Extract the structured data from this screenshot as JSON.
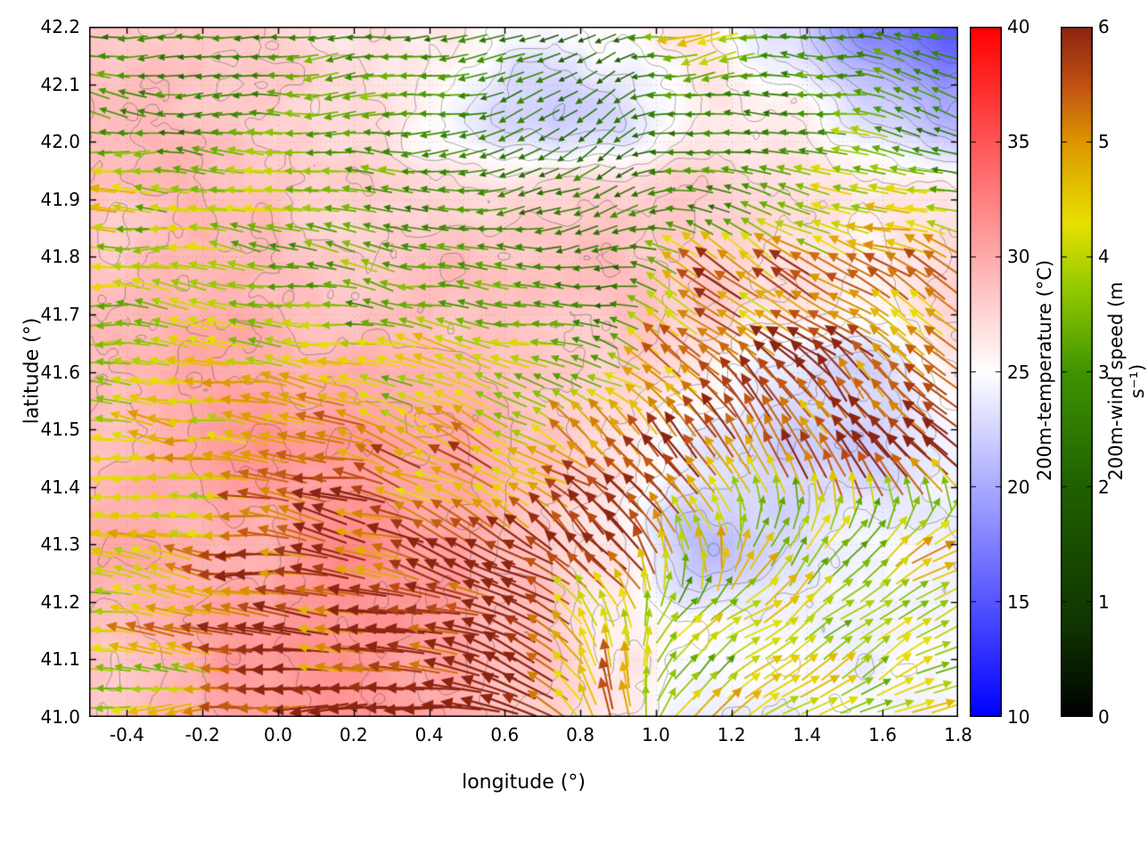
{
  "chart_data": {
    "type": "heatmap",
    "subtype": "temperature field with wind vectors and contour lines",
    "title": "",
    "xlabel": "longitude (°)",
    "ylabel": "latitude (°)",
    "xlim": [
      -0.5,
      1.8
    ],
    "ylim": [
      41.0,
      42.2
    ],
    "xticks": [
      -0.4,
      -0.2,
      0.0,
      0.2,
      0.4,
      0.6,
      0.8,
      1.0,
      1.2,
      1.4,
      1.6,
      1.8
    ],
    "yticks": [
      41.0,
      41.1,
      41.2,
      41.3,
      41.4,
      41.5,
      41.6,
      41.7,
      41.8,
      41.9,
      42.0,
      42.1,
      42.2
    ],
    "grid": true,
    "contour_interval_c": 1,
    "contour_levels_c": [
      17,
      18,
      19,
      20,
      21,
      22,
      23,
      24,
      25,
      26,
      27,
      28,
      29,
      30,
      31
    ],
    "contour_color": "#3c3c3c",
    "temperature_field": {
      "units": "°C",
      "lon": [
        -0.5,
        -0.27,
        -0.04,
        0.19,
        0.42,
        0.65,
        0.88,
        1.11,
        1.34,
        1.57,
        1.8
      ],
      "lat": [
        41.0,
        41.15,
        41.3,
        41.45,
        41.6,
        41.75,
        41.9,
        42.05,
        42.2
      ],
      "values": [
        [
          29.0,
          29.5,
          30.0,
          30.5,
          30.0,
          28.0,
          26.0,
          24.5,
          24.0,
          24.0,
          24.0
        ],
        [
          29.0,
          29.5,
          30.5,
          31.0,
          30.5,
          28.5,
          26.0,
          24.5,
          24.0,
          24.0,
          24.0
        ],
        [
          29.0,
          29.5,
          30.0,
          31.0,
          30.5,
          29.0,
          26.5,
          21.5,
          23.0,
          24.0,
          24.5
        ],
        [
          29.0,
          29.5,
          30.0,
          30.0,
          29.5,
          29.0,
          27.0,
          24.0,
          23.0,
          23.5,
          25.0
        ],
        [
          29.0,
          29.5,
          29.5,
          29.5,
          29.0,
          29.0,
          28.0,
          26.0,
          24.0,
          23.5,
          26.0
        ],
        [
          28.5,
          29.0,
          29.0,
          29.0,
          29.0,
          28.5,
          28.5,
          28.0,
          27.0,
          26.5,
          27.0
        ],
        [
          28.5,
          29.0,
          29.0,
          28.5,
          27.5,
          27.0,
          27.5,
          28.0,
          27.5,
          27.0,
          26.0
        ],
        [
          28.0,
          28.5,
          28.5,
          28.0,
          26.0,
          23.0,
          23.5,
          26.5,
          26.0,
          22.0,
          20.0
        ],
        [
          28.0,
          28.0,
          28.5,
          27.5,
          26.5,
          24.5,
          25.5,
          26.5,
          24.0,
          18.0,
          16.0
        ]
      ]
    },
    "temperature_colorbar": {
      "label": "200m-temperature (°C)",
      "min": 10,
      "max": 40,
      "ticks": [
        10,
        15,
        20,
        25,
        30,
        35,
        40
      ],
      "stops": [
        {
          "t": 10,
          "c": "#0000ff"
        },
        {
          "t": 25,
          "c": "#ffffff"
        },
        {
          "t": 40,
          "c": "#ff0000"
        }
      ]
    },
    "wind_field": {
      "units": "m s⁻¹",
      "lon": [
        -0.5,
        -0.27,
        -0.04,
        0.19,
        0.42,
        0.65,
        0.88,
        1.11,
        1.34,
        1.57,
        1.8
      ],
      "lat": [
        41.0,
        41.15,
        41.3,
        41.45,
        41.6,
        41.75,
        41.9,
        42.05,
        42.2
      ],
      "u": [
        [
          -4.0,
          -4.0,
          -6.0,
          -6.0,
          -5.9,
          -5.8,
          -2.2,
          3.3,
          3.5,
          3.6,
          3.6
        ],
        [
          -4.0,
          -4.5,
          -5.9,
          -6.0,
          -5.9,
          -5.5,
          -1.6,
          3.1,
          3.4,
          3.5,
          3.5
        ],
        [
          -4.0,
          -4.6,
          -5.8,
          -5.9,
          -5.6,
          -5.2,
          -3.5,
          -0.8,
          2.0,
          3.1,
          3.3
        ],
        [
          -4.0,
          -4.2,
          -4.8,
          -5.2,
          -4.7,
          -3.9,
          -4.2,
          -3.7,
          -2.8,
          -2.8,
          -3.2
        ],
        [
          -4.0,
          -4.0,
          -4.2,
          -4.3,
          -3.7,
          -3.6,
          -2.8,
          -4.2,
          -4.1,
          -3.9,
          -4.2
        ],
        [
          -3.8,
          -3.5,
          -3.8,
          -3.0,
          -2.9,
          -2.8,
          -2.5,
          -4.3,
          -4.2,
          -4.5,
          -4.8
        ],
        [
          -4.4,
          -4.0,
          -3.8,
          -3.0,
          -2.8,
          -2.5,
          -2.1,
          -2.5,
          -3.0,
          -4.5,
          -3.0
        ],
        [
          -3.0,
          -2.5,
          -3.0,
          -3.0,
          -2.8,
          -2.2,
          -1.7,
          -2.5,
          -2.8,
          -3.0,
          -2.4
        ],
        [
          -2.5,
          -3.0,
          -2.3,
          -3.0,
          -2.6,
          -2.1,
          -2.2,
          -4.3,
          -3.0,
          -2.5,
          -3.0
        ]
      ],
      "v": [
        [
          0.0,
          0.0,
          -0.5,
          0.5,
          1.0,
          1.6,
          3.9,
          2.3,
          2.0,
          1.7,
          1.7
        ],
        [
          0.3,
          0.3,
          0.0,
          0.5,
          1.2,
          2.2,
          4.3,
          2.6,
          2.1,
          1.9,
          1.9
        ],
        [
          0.5,
          0.5,
          0.8,
          0.8,
          2.0,
          3.0,
          4.2,
          4.4,
          3.5,
          2.6,
          2.3
        ],
        [
          0.5,
          0.6,
          0.8,
          1.2,
          1.7,
          2.3,
          3.5,
          4.4,
          4.8,
          4.8,
          4.5
        ],
        [
          0.3,
          0.4,
          0.5,
          0.7,
          1.0,
          1.3,
          1.6,
          3.5,
          4.1,
          3.9,
          3.5
        ],
        [
          0.3,
          0.3,
          0.4,
          0.5,
          0.5,
          0.5,
          0.0,
          2.5,
          3.5,
          3.1,
          2.8
        ],
        [
          0.5,
          0.4,
          0.4,
          0.4,
          0.3,
          -0.4,
          -0.8,
          0.0,
          0.5,
          0.0,
          0.5
        ],
        [
          0.3,
          0.2,
          0.3,
          -0.3,
          -0.5,
          -0.8,
          -1.0,
          -0.4,
          0.0,
          0.5,
          0.9
        ],
        [
          0.2,
          0.3,
          0.0,
          -0.3,
          -0.4,
          -0.7,
          -0.6,
          -0.4,
          0.0,
          0.4,
          0.3
        ]
      ]
    },
    "wind_colorbar": {
      "label": "200m-wind speed (m s⁻¹)",
      "min": 0,
      "max": 6,
      "ticks": [
        0,
        1,
        2,
        3,
        4,
        5,
        6
      ],
      "stops": [
        {
          "t": 0.0,
          "c": "#000000"
        },
        {
          "t": 0.8,
          "c": "#0f3500"
        },
        {
          "t": 2.0,
          "c": "#1f6000"
        },
        {
          "t": 3.0,
          "c": "#3f9400"
        },
        {
          "t": 3.7,
          "c": "#90c800"
        },
        {
          "t": 4.3,
          "c": "#e8e000"
        },
        {
          "t": 5.0,
          "c": "#dc9600"
        },
        {
          "t": 5.5,
          "c": "#c05014"
        },
        {
          "t": 6.0,
          "c": "#8c2410"
        }
      ]
    }
  }
}
